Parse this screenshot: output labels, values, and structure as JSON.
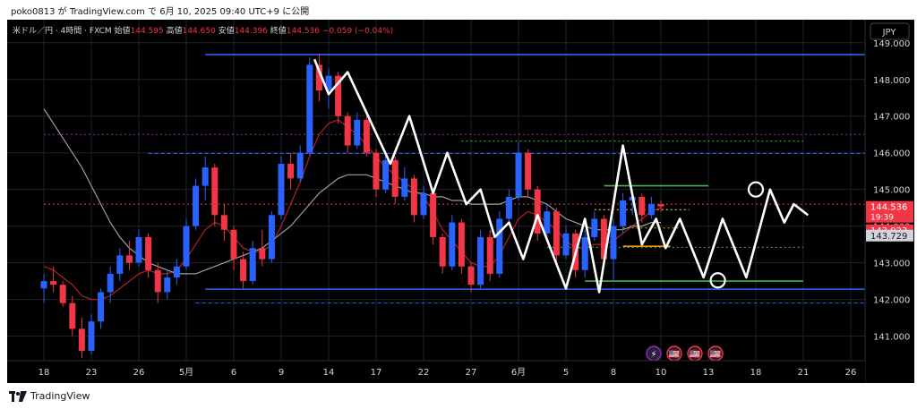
{
  "header": {
    "text": "poko0813 が TradingView.com で 6月 10, 2025 09:40 UTC+9 に公開"
  },
  "footer": {
    "brand": "TradingView"
  },
  "chart_data": {
    "type": "line",
    "symbol": "米ドル／円 · 4時間 · FXCM",
    "ohlc": {
      "open_label": "始値",
      "open": "144.595",
      "high_label": "高値",
      "high": "144.650",
      "low_label": "安値",
      "low": "144.396",
      "close_label": "終値",
      "close": "144.536",
      "change": "−0.059 (−0.04%)"
    },
    "currency": "JPY",
    "y_ticks": [
      "149.000",
      "148.000",
      "147.000",
      "146.000",
      "145.000",
      "144.000",
      "143.000",
      "142.000",
      "141.000"
    ],
    "ylim": [
      140.33,
      149.63
    ],
    "x_ticks": [
      {
        "label": "18",
        "i": 0
      },
      {
        "label": "23",
        "i": 5
      },
      {
        "label": "26",
        "i": 10
      },
      {
        "label": "5月",
        "i": 15
      },
      {
        "label": "6",
        "i": 20
      },
      {
        "label": "9",
        "i": 25
      },
      {
        "label": "14",
        "i": 30
      },
      {
        "label": "17",
        "i": 35
      },
      {
        "label": "22",
        "i": 40
      },
      {
        "label": "27",
        "i": 45
      },
      {
        "label": "6月",
        "i": 50
      },
      {
        "label": "5",
        "i": 55
      },
      {
        "label": "8",
        "i": 60
      },
      {
        "label": "10",
        "i": 65
      },
      {
        "label": "13",
        "i": 70
      },
      {
        "label": "18",
        "i": 75
      },
      {
        "label": "21",
        "i": 80
      },
      {
        "label": "26",
        "i": 85
      }
    ],
    "price_labels": [
      {
        "text": "144.536",
        "sub": "19:39",
        "value": 144.536,
        "bg": "#f23645",
        "fg": "#ffffff"
      },
      {
        "text": "143.923",
        "value": 143.923,
        "bg": "#f23645",
        "fg": "#ffffff"
      },
      {
        "text": "143.729",
        "value": 143.729,
        "bg": "#d1d4dc",
        "fg": "#131722"
      }
    ],
    "levels": [
      {
        "value": 148.68,
        "color": "#2962ff",
        "style": "solid",
        "from_i": 17
      },
      {
        "value": 142.28,
        "color": "#2962ff",
        "style": "solid",
        "from_i": 17
      },
      {
        "value": 146.5,
        "color": "#9c27b0",
        "style": "dotted",
        "from_i": 0
      },
      {
        "value": 145.98,
        "color": "#2962ff",
        "style": "dashed",
        "from_i": 11
      },
      {
        "value": 141.9,
        "color": "#2962ff",
        "style": "dashed",
        "from_i": 16
      },
      {
        "value": 144.6,
        "color": "#f23645",
        "style": "dotted",
        "from_i": 0
      },
      {
        "value": 146.32,
        "color": "#4caf50",
        "style": "dotted",
        "from_i": 44,
        "to_i": 80
      },
      {
        "value": 145.1,
        "color": "#4caf50",
        "style": "solid",
        "from_i": 59,
        "to_i": 70
      },
      {
        "value": 144.45,
        "color": "#ffeb3b",
        "style": "dotted",
        "from_i": 58,
        "to_i": 68
      },
      {
        "value": 143.95,
        "color": "#ff9800",
        "style": "dotted",
        "from_i": 61,
        "to_i": 67
      },
      {
        "value": 143.45,
        "color": "#ff9800",
        "style": "solid",
        "from_i": 61,
        "to_i": 66
      },
      {
        "value": 143.42,
        "color": "#4caf50",
        "style": "dotted",
        "from_i": 53,
        "to_i": 80
      },
      {
        "value": 142.5,
        "color": "#4caf50",
        "style": "solid",
        "from_i": 57,
        "to_i": 80
      }
    ],
    "series": [
      {
        "kind": "candles",
        "values": [
          [
            142.3,
            142.7,
            141.9,
            142.5
          ],
          [
            142.5,
            142.9,
            142.2,
            142.4
          ],
          [
            142.4,
            142.5,
            141.8,
            141.9
          ],
          [
            141.9,
            142.1,
            141.0,
            141.2
          ],
          [
            141.2,
            141.5,
            140.4,
            140.6
          ],
          [
            140.6,
            141.6,
            140.5,
            141.4
          ],
          [
            141.4,
            142.3,
            141.2,
            142.2
          ],
          [
            142.2,
            142.9,
            141.9,
            142.7
          ],
          [
            142.7,
            143.4,
            142.5,
            143.2
          ],
          [
            143.2,
            143.6,
            142.8,
            143.0
          ],
          [
            143.0,
            143.9,
            142.9,
            143.7
          ],
          [
            143.7,
            143.8,
            142.6,
            142.8
          ],
          [
            142.8,
            143.0,
            141.9,
            142.2
          ],
          [
            142.2,
            142.8,
            142.0,
            142.6
          ],
          [
            142.6,
            143.1,
            142.4,
            142.9
          ],
          [
            142.9,
            144.2,
            142.8,
            144.0
          ],
          [
            144.0,
            145.3,
            143.9,
            145.1
          ],
          [
            145.1,
            145.9,
            144.7,
            145.6
          ],
          [
            145.6,
            145.7,
            144.0,
            144.3
          ],
          [
            144.3,
            144.6,
            143.6,
            143.9
          ],
          [
            143.9,
            144.0,
            142.8,
            143.1
          ],
          [
            143.1,
            143.3,
            142.3,
            142.5
          ],
          [
            142.5,
            143.6,
            142.4,
            143.4
          ],
          [
            143.4,
            143.9,
            142.9,
            143.1
          ],
          [
            143.1,
            144.4,
            143.0,
            144.3
          ],
          [
            144.3,
            145.9,
            144.2,
            145.7
          ],
          [
            145.7,
            146.0,
            145.0,
            145.3
          ],
          [
            145.3,
            146.2,
            145.2,
            146.0
          ],
          [
            146.0,
            148.6,
            145.9,
            148.4
          ],
          [
            148.4,
            148.7,
            147.4,
            147.7
          ],
          [
            147.7,
            148.3,
            147.2,
            148.1
          ],
          [
            148.1,
            148.2,
            146.8,
            147.0
          ],
          [
            147.0,
            147.1,
            146.0,
            146.2
          ],
          [
            146.2,
            147.1,
            146.1,
            146.9
          ],
          [
            146.9,
            147.0,
            145.9,
            146.0
          ],
          [
            146.0,
            146.1,
            144.8,
            145.0
          ],
          [
            145.0,
            146.0,
            144.9,
            145.8
          ],
          [
            145.8,
            145.9,
            144.6,
            144.8
          ],
          [
            144.8,
            145.6,
            144.7,
            145.3
          ],
          [
            145.3,
            145.4,
            144.1,
            144.3
          ],
          [
            144.3,
            145.1,
            144.2,
            144.9
          ],
          [
            144.9,
            145.0,
            143.5,
            143.7
          ],
          [
            143.7,
            143.8,
            142.7,
            142.9
          ],
          [
            142.9,
            144.3,
            142.8,
            144.1
          ],
          [
            144.1,
            144.2,
            142.7,
            142.9
          ],
          [
            142.9,
            143.0,
            142.2,
            142.4
          ],
          [
            142.4,
            143.9,
            142.3,
            143.7
          ],
          [
            143.7,
            143.9,
            142.5,
            142.7
          ],
          [
            142.7,
            144.4,
            142.6,
            144.2
          ],
          [
            144.2,
            145.0,
            144.1,
            144.8
          ],
          [
            144.8,
            146.3,
            144.7,
            146.0
          ],
          [
            146.0,
            146.1,
            144.8,
            145.0
          ],
          [
            145.0,
            145.1,
            143.6,
            143.8
          ],
          [
            143.8,
            144.6,
            143.7,
            144.4
          ],
          [
            144.4,
            144.5,
            143.0,
            143.2
          ],
          [
            143.2,
            144.0,
            143.1,
            143.8
          ],
          [
            143.8,
            143.9,
            142.6,
            142.8
          ],
          [
            142.8,
            143.9,
            142.6,
            143.7
          ],
          [
            143.7,
            144.4,
            143.6,
            144.2
          ],
          [
            144.2,
            144.3,
            142.9,
            143.1
          ],
          [
            143.1,
            144.2,
            142.5,
            144.0
          ],
          [
            144.0,
            144.9,
            143.8,
            144.7
          ],
          [
            144.7,
            145.0,
            144.3,
            144.8
          ],
          [
            144.8,
            144.9,
            144.1,
            144.3
          ],
          [
            144.3,
            144.8,
            144.2,
            144.6
          ],
          [
            144.6,
            144.7,
            144.4,
            144.536
          ]
        ]
      },
      {
        "kind": "ma",
        "color": "#b22222",
        "values": [
          142.9,
          142.8,
          142.6,
          142.4,
          142.1,
          142.0,
          142.0,
          142.1,
          142.3,
          142.5,
          142.7,
          142.8,
          142.7,
          142.7,
          142.8,
          143.1,
          143.5,
          143.9,
          144.1,
          144.0,
          143.7,
          143.4,
          143.3,
          143.3,
          143.5,
          144.0,
          144.6,
          145.2,
          145.9,
          146.5,
          146.8,
          146.9,
          146.7,
          146.5,
          146.2,
          145.9,
          145.6,
          145.4,
          145.2,
          145.0,
          144.8,
          144.4,
          143.9,
          143.6,
          143.3,
          143.0,
          142.9,
          142.9,
          143.2,
          143.7,
          144.2,
          144.4,
          144.3,
          144.1,
          143.9,
          143.6,
          143.4,
          143.4,
          143.5,
          143.5,
          143.6,
          143.8,
          144.0,
          144.2,
          144.4,
          144.5
        ]
      },
      {
        "kind": "ma",
        "color": "#9e9e9e",
        "values": [
          147.2,
          146.8,
          146.4,
          146.0,
          145.6,
          145.1,
          144.6,
          144.1,
          143.7,
          143.4,
          143.2,
          143.0,
          142.9,
          142.8,
          142.7,
          142.7,
          142.7,
          142.8,
          142.9,
          143.0,
          143.1,
          143.2,
          143.3,
          143.4,
          143.6,
          143.8,
          144.0,
          144.3,
          144.6,
          144.9,
          145.1,
          145.3,
          145.4,
          145.4,
          145.4,
          145.3,
          145.2,
          145.1,
          145.0,
          144.9,
          144.9,
          144.8,
          144.8,
          144.7,
          144.7,
          144.6,
          144.6,
          144.6,
          144.6,
          144.7,
          144.8,
          144.8,
          144.7,
          144.6,
          144.4,
          144.2,
          144.1,
          144.0,
          143.9,
          143.9,
          143.9,
          143.9,
          144.0,
          144.0,
          144.1,
          144.1
        ]
      },
      {
        "kind": "zigzag",
        "color": "#ffffff",
        "points": [
          [
            28.5,
            148.55
          ],
          [
            30,
            147.6
          ],
          [
            32,
            148.2
          ],
          [
            36.5,
            145.7
          ],
          [
            38.5,
            147.0
          ],
          [
            41,
            144.9
          ],
          [
            42.5,
            146.0
          ],
          [
            44.5,
            144.6
          ],
          [
            46,
            145.0
          ],
          [
            47.5,
            143.7
          ],
          [
            49,
            144.1
          ],
          [
            50.5,
            143.1
          ],
          [
            52,
            144.3
          ],
          [
            55,
            142.3
          ],
          [
            57,
            144.2
          ],
          [
            58.5,
            142.2
          ],
          [
            61,
            146.2
          ],
          [
            63,
            143.5
          ],
          [
            64.5,
            144.2
          ],
          [
            65.5,
            143.4
          ],
          [
            67,
            144.2
          ],
          [
            69.5,
            142.6
          ],
          [
            71.5,
            144.2
          ],
          [
            74,
            142.6
          ],
          [
            76.5,
            145.0
          ],
          [
            78,
            144.1
          ],
          [
            79,
            144.6
          ],
          [
            80.5,
            144.3
          ]
        ]
      }
    ],
    "circles": [
      {
        "i": 75,
        "value": 145.0
      },
      {
        "i": 71,
        "value": 142.52
      }
    ],
    "events": [
      "⚡",
      "🇺🇸",
      "🇺🇸",
      "🇺🇸"
    ]
  }
}
